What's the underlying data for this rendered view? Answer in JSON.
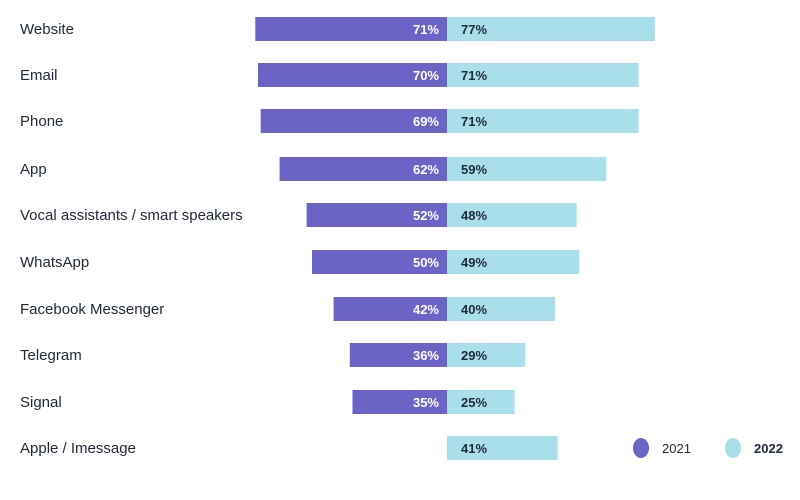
{
  "chart_data": {
    "type": "bar",
    "orientation": "horizontal-diverging",
    "categories": [
      "Website",
      "Email",
      "Phone",
      "App",
      "Vocal assistants / smart speakers",
      "WhatsApp",
      "Facebook Messenger",
      "Telegram",
      "Signal",
      "Apple / Imessage"
    ],
    "series": [
      {
        "name": "2021",
        "values": [
          71,
          70,
          69,
          62,
          52,
          50,
          42,
          36,
          35,
          null
        ],
        "labels": [
          "71%",
          "70%",
          "69%",
          "62%",
          "52%",
          "50%",
          "42%",
          "36%",
          "35%",
          null
        ],
        "color": "#6c63c7"
      },
      {
        "name": "2022",
        "values": [
          77,
          71,
          71,
          59,
          48,
          49,
          40,
          29,
          25,
          41
        ],
        "labels": [
          "77%",
          "71%",
          "71%",
          "59%",
          "48%",
          "49%",
          "40%",
          "29%",
          "25%",
          "41%"
        ],
        "color": "#a8dfeb"
      }
    ],
    "legend": {
      "placement": "bottom-right",
      "items": [
        "2021",
        "2022"
      ]
    },
    "unit": "%",
    "grid": false
  }
}
